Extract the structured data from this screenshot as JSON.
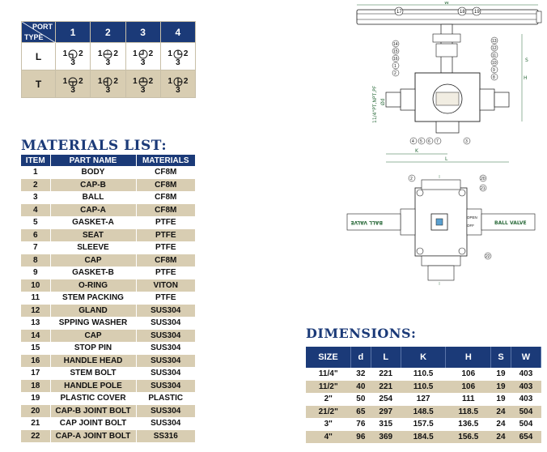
{
  "port_table": {
    "corner_port": "PORT",
    "corner_type": "TYPE",
    "ports": [
      "1",
      "2",
      "3",
      "4"
    ],
    "rows": [
      {
        "type": "L",
        "symbols": [
          {
            "left": "1",
            "right": "2",
            "bottom": "3",
            "icon": "l-port-1-icon"
          },
          {
            "left": "1",
            "right": "2",
            "bottom": "3",
            "icon": "l-port-2-icon"
          },
          {
            "left": "1",
            "right": "2",
            "bottom": "3",
            "icon": "l-port-3-icon"
          },
          {
            "left": "1",
            "right": "2",
            "bottom": "3",
            "icon": "l-port-4-icon"
          }
        ]
      },
      {
        "type": "T",
        "symbols": [
          {
            "left": "1",
            "right": "2",
            "bottom": "3",
            "icon": "t-port-1-icon"
          },
          {
            "left": "1",
            "right": "2",
            "bottom": "3",
            "icon": "t-port-2-icon"
          },
          {
            "left": "1",
            "right": "2",
            "bottom": "3",
            "icon": "t-port-3-icon"
          },
          {
            "left": "1",
            "right": "2",
            "bottom": "3",
            "icon": "t-port-4-icon"
          }
        ]
      }
    ]
  },
  "materials": {
    "title": "MATERIALS LIST:",
    "headers": [
      "ITEM",
      "PART NAME",
      "MATERIALS"
    ],
    "rows": [
      [
        "1",
        "BODY",
        "CF8M"
      ],
      [
        "2",
        "CAP-B",
        "CF8M"
      ],
      [
        "3",
        "BALL",
        "CF8M"
      ],
      [
        "4",
        "CAP-A",
        "CF8M"
      ],
      [
        "5",
        "GASKET-A",
        "PTFE"
      ],
      [
        "6",
        "SEAT",
        "PTFE"
      ],
      [
        "7",
        "SLEEVE",
        "PTFE"
      ],
      [
        "8",
        "CAP",
        "CF8M"
      ],
      [
        "9",
        "GASKET-B",
        "PTFE"
      ],
      [
        "10",
        "O-RING",
        "VITON"
      ],
      [
        "11",
        "STEM PACKING",
        "PTFE"
      ],
      [
        "12",
        "GLAND",
        "SUS304"
      ],
      [
        "13",
        "SPPING WASHER",
        "SUS304"
      ],
      [
        "14",
        "CAP",
        "SUS304"
      ],
      [
        "15",
        "STOP PIN",
        "SUS304"
      ],
      [
        "16",
        "HANDLE HEAD",
        "SUS304"
      ],
      [
        "17",
        "STEM BOLT",
        "SUS304"
      ],
      [
        "18",
        "HANDLE POLE",
        "SUS304"
      ],
      [
        "19",
        "PLASTIC COVER",
        "PLASTIC"
      ],
      [
        "20",
        "CAP-B JOINT BOLT",
        "SUS304"
      ],
      [
        "21",
        "CAP JOINT BOLT",
        "SUS304"
      ],
      [
        "22",
        "CAP-A JOINT BOLT",
        "SS316"
      ]
    ]
  },
  "dimensions": {
    "title": "DIMENSIONS:",
    "headers": [
      "SIZE",
      "d",
      "L",
      "K",
      "H",
      "S",
      "W"
    ],
    "rows": [
      [
        "11/4\"",
        "32",
        "221",
        "110.5",
        "106",
        "19",
        "403"
      ],
      [
        "11/2\"",
        "40",
        "221",
        "110.5",
        "106",
        "19",
        "403"
      ],
      [
        "2\"",
        "50",
        "254",
        "127",
        "111",
        "19",
        "403"
      ],
      [
        "21/2\"",
        "65",
        "297",
        "148.5",
        "118.5",
        "24",
        "504"
      ],
      [
        "3\"",
        "76",
        "315",
        "157.5",
        "136.5",
        "24",
        "504"
      ],
      [
        "4\"",
        "96",
        "369",
        "184.5",
        "156.5",
        "24",
        "654"
      ]
    ]
  },
  "drawing": {
    "balloons_top": [
      "17",
      "18",
      "19"
    ],
    "balloons_right": [
      "13",
      "12",
      "11",
      "10",
      "9",
      "8"
    ],
    "balloons_left": [
      "14",
      "15",
      "16",
      "1",
      "2"
    ],
    "balloons_bottom": [
      "4",
      "5",
      "6",
      "7",
      "3"
    ],
    "balloons_plan": [
      "2",
      "20",
      "21",
      "22"
    ],
    "dim_w": "W",
    "dim_h": "H",
    "dim_l": "L",
    "dim_k": "K",
    "dim_s": "S",
    "side_text": "11/4\"PT,NPT,PF",
    "side_d": "Ød",
    "valve_text_left": "BALL VALVE",
    "valve_text_right": "BALL VALVE",
    "open_text": "OPEN",
    "off_text": "OFF",
    "accent": "#1b3a78",
    "stripe": "#d8cdb2"
  }
}
